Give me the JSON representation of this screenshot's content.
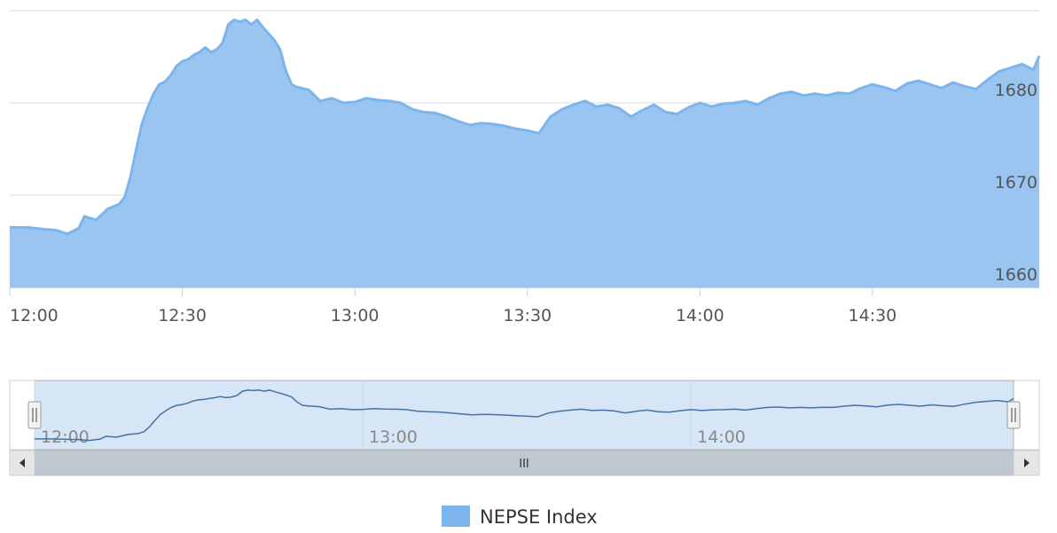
{
  "colors": {
    "series_fill": "#99c5f0",
    "series_line": "#7cb5ec",
    "nav_line": "#4572a7",
    "nav_mask": "#d6e6f7",
    "scrollbar_track": "#eeeeee",
    "scrollbar_thumb": "#bfc8d1",
    "grid": "#d8d8d8"
  },
  "legend": {
    "items": [
      {
        "name": "NEPSE Index",
        "color": "#7cb5ec"
      }
    ]
  },
  "navigator": {
    "x_tick_labels": [
      "12:00",
      "13:00",
      "14:00"
    ],
    "left_handle_icon": "grip-handle-icon",
    "right_handle_icon": "grip-handle-icon",
    "scroll_left_icon": "arrow-left-icon",
    "scroll_right_icon": "arrow-right-icon",
    "thumb_grip": "III"
  },
  "chart_data": {
    "type": "area",
    "title": "",
    "xlabel": "",
    "ylabel": "",
    "x_tick_labels": [
      "12:00",
      "12:30",
      "13:00",
      "13:30",
      "14:00",
      "14:30"
    ],
    "y_tick_labels": [
      "1660",
      "1670",
      "1680"
    ],
    "xlim": [
      "12:00",
      "14:59"
    ],
    "ylim": [
      1660,
      1690
    ],
    "grid": true,
    "legend_position": "bottom-center",
    "series": [
      {
        "name": "NEPSE Index",
        "x": [
          "12:00",
          "12:03",
          "12:06",
          "12:08",
          "12:10",
          "12:12",
          "12:13",
          "12:15",
          "12:17",
          "12:19",
          "12:20",
          "12:21",
          "12:22",
          "12:23",
          "12:24",
          "12:25",
          "12:26",
          "12:27",
          "12:28",
          "12:29",
          "12:30",
          "12:31",
          "12:32",
          "12:33",
          "12:34",
          "12:35",
          "12:36",
          "12:37",
          "12:38",
          "12:39",
          "12:40",
          "12:41",
          "12:42",
          "12:43",
          "12:44",
          "12:45",
          "12:46",
          "12:47",
          "12:48",
          "12:49",
          "12:50",
          "12:52",
          "12:54",
          "12:56",
          "12:58",
          "13:00",
          "13:02",
          "13:04",
          "13:06",
          "13:08",
          "13:10",
          "13:12",
          "13:14",
          "13:16",
          "13:18",
          "13:20",
          "13:22",
          "13:24",
          "13:26",
          "13:28",
          "13:30",
          "13:32",
          "13:34",
          "13:36",
          "13:38",
          "13:40",
          "13:42",
          "13:44",
          "13:46",
          "13:48",
          "13:50",
          "13:52",
          "13:54",
          "13:56",
          "13:58",
          "14:00",
          "14:02",
          "14:04",
          "14:06",
          "14:08",
          "14:10",
          "14:12",
          "14:14",
          "14:16",
          "14:18",
          "14:20",
          "14:22",
          "14:24",
          "14:26",
          "14:28",
          "14:30",
          "14:32",
          "14:34",
          "14:36",
          "14:38",
          "14:40",
          "14:42",
          "14:44",
          "14:46",
          "14:48",
          "14:50",
          "14:52",
          "14:54",
          "14:56",
          "14:58",
          "14:59"
        ],
        "values": [
          1666.5,
          1666.5,
          1666.3,
          1666.2,
          1665.8,
          1666.4,
          1667.7,
          1667.3,
          1668.5,
          1669.0,
          1669.8,
          1672.0,
          1675.0,
          1677.8,
          1679.5,
          1681.0,
          1682.0,
          1682.3,
          1683.0,
          1684.0,
          1684.5,
          1684.7,
          1685.2,
          1685.5,
          1686.0,
          1685.5,
          1685.8,
          1686.5,
          1688.5,
          1689.0,
          1688.8,
          1689.0,
          1688.5,
          1689.0,
          1688.2,
          1687.5,
          1686.8,
          1685.8,
          1683.5,
          1682.0,
          1681.7,
          1681.4,
          1680.2,
          1680.5,
          1680.0,
          1680.1,
          1680.5,
          1680.3,
          1680.2,
          1680.0,
          1679.3,
          1679.0,
          1678.9,
          1678.5,
          1678.0,
          1677.6,
          1677.8,
          1677.7,
          1677.5,
          1677.2,
          1677.0,
          1676.7,
          1678.5,
          1679.3,
          1679.8,
          1680.2,
          1679.6,
          1679.8,
          1679.4,
          1678.5,
          1679.2,
          1679.8,
          1679.0,
          1678.8,
          1679.5,
          1680.0,
          1679.6,
          1679.9,
          1680.0,
          1680.2,
          1679.8,
          1680.5,
          1681.0,
          1681.2,
          1680.8,
          1681.0,
          1680.8,
          1681.1,
          1681.0,
          1681.6,
          1682.0,
          1681.7,
          1681.3,
          1682.1,
          1682.4,
          1682.0,
          1681.6,
          1682.2,
          1681.8,
          1681.5,
          1682.5,
          1683.4,
          1683.8,
          1684.2,
          1683.6,
          1685.1
        ]
      }
    ]
  }
}
